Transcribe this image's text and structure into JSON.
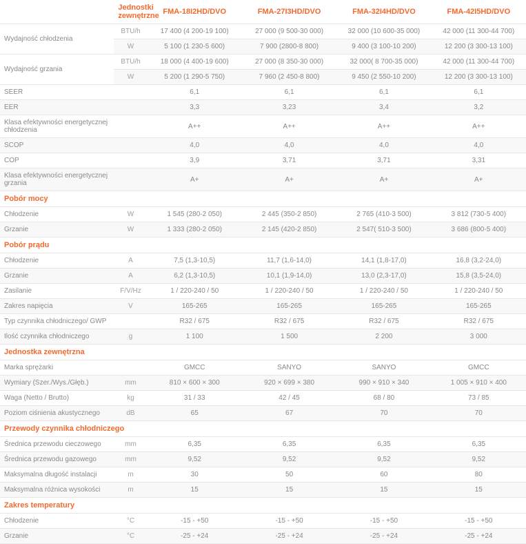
{
  "header": {
    "rowLabel": "Jednostki zewnętrzne",
    "models": [
      "FMA-18I2HD/DVO",
      "FMA-27I3HD/DVO",
      "FMA-32I4HD/DVO",
      "FMA-42I5HD/DVO"
    ]
  },
  "rows": [
    {
      "label": "Wydajność chłodzenia",
      "unit": "BTU/h",
      "v": [
        "17 400 (4 200-19 100)",
        "27 000 (9 500-30 000)",
        "32 000 (10 600-35 000)",
        "42 000 (11 300-44 700)"
      ],
      "rowspan": 2
    },
    {
      "label": "",
      "unit": "W",
      "v": [
        "5 100 (1 230-5 600)",
        "7 900 (2800-8 800)",
        "9 400 (3 100-10 200)",
        "12 200 (3 300-13 100)"
      ]
    },
    {
      "label": "Wydajność grzania",
      "unit": "BTU/h",
      "v": [
        "18 000 (4 400-19 600)",
        "27 000 (8 350-30 000)",
        "32 000( 8 700-35 000)",
        "42 000 (11 300-44 700)"
      ],
      "rowspan": 2
    },
    {
      "label": "",
      "unit": "W",
      "v": [
        "5 200 (1 290-5 750)",
        "7 960 (2 450-8 800)",
        "9 450 (2 550-10 200)",
        "12 200 (3 300-13 100)"
      ]
    },
    {
      "label": "SEER",
      "unit": "",
      "v": [
        "6,1",
        "6,1",
        "6,1",
        "6,1"
      ]
    },
    {
      "label": "EER",
      "unit": "",
      "v": [
        "3,3",
        "3,23",
        "3,4",
        "3,2"
      ]
    },
    {
      "label": "Klasa efektywności energetycznej chłodzenia",
      "unit": "",
      "v": [
        "A++",
        "A++",
        "A++",
        "A++"
      ]
    },
    {
      "label": "SCOP",
      "unit": "",
      "v": [
        "4,0",
        "4,0",
        "4,0",
        "4,0"
      ]
    },
    {
      "label": "COP",
      "unit": "",
      "v": [
        "3,9",
        "3,71",
        "3,71",
        "3,31"
      ]
    },
    {
      "label": "Klasa efektywności energetycznej grzania",
      "unit": "",
      "v": [
        "A+",
        "A+",
        "A+",
        "A+"
      ]
    },
    {
      "section": "Pobór mocy"
    },
    {
      "label": "Chłodzenie",
      "unit": "W",
      "v": [
        "1 545 (280-2 050)",
        "2 445 (350-2 850)",
        "2 765 (410-3 500)",
        "3 812 (730-5 400)"
      ]
    },
    {
      "label": "Grzanie",
      "unit": "W",
      "v": [
        "1 333 (280-2 050)",
        "2 145 (420-2 850)",
        "2 547( 510-3 500)",
        "3 686 (800-5 400)"
      ]
    },
    {
      "section": "Pobór prądu"
    },
    {
      "label": "Chłodzenie",
      "unit": "A",
      "v": [
        "7,5 (1,3-10,5)",
        "11,7 (1,6-14,0)",
        "14,1 (1,8-17,0)",
        "16,8 (3,2-24,0)"
      ]
    },
    {
      "label": "Grzanie",
      "unit": "A",
      "v": [
        "6,2 (1,3-10,5)",
        "10,1 (1,9-14,0)",
        "13,0 (2,3-17,0)",
        "15,8 (3,5-24,0)"
      ]
    },
    {
      "label": "Zasilanie",
      "unit": "F/V/Hz",
      "v": [
        "1 / 220-240 / 50",
        "1 / 220-240 / 50",
        "1 / 220-240 / 50",
        "1 / 220-240 / 50"
      ]
    },
    {
      "label": "Zakres napięcia",
      "unit": "V",
      "v": [
        "165-265",
        "165-265",
        "165-265",
        "165-265"
      ]
    },
    {
      "label": "Typ czynnika chłodniczego/ GWP",
      "unit": "",
      "v": [
        "R32 / 675",
        "R32 / 675",
        "R32 / 675",
        "R32 / 675"
      ]
    },
    {
      "label": "Ilość czynnika chłodniczego",
      "unit": "g",
      "v": [
        "1 100",
        "1 500",
        "2 200",
        "3 000"
      ]
    },
    {
      "section": "Jednostka zewnętrzna"
    },
    {
      "label": "Marka sprężarki",
      "unit": "",
      "v": [
        "GMCC",
        "SANYO",
        "SANYO",
        "GMCC"
      ]
    },
    {
      "label": "Wymiary (Szer./Wys./Głęb.)",
      "unit": "mm",
      "v": [
        "810 × 600 × 300",
        "920 × 699 × 380",
        "990 × 910 × 340",
        "1 005 × 910 × 400"
      ]
    },
    {
      "label": "Waga (Netto / Brutto)",
      "unit": "kg",
      "v": [
        "31 / 33",
        "42 / 45",
        "68 / 80",
        "73 / 85"
      ]
    },
    {
      "label": "Poziom ciśnienia akustycznego",
      "unit": "dB",
      "v": [
        "65",
        "67",
        "70",
        "70"
      ]
    },
    {
      "section": "Przewody czynnika chłodniczego"
    },
    {
      "label": "Średnica przewodu cieczowego",
      "unit": "mm",
      "v": [
        "6,35",
        "6,35",
        "6,35",
        "6,35"
      ]
    },
    {
      "label": "Średnica przewodu gazowego",
      "unit": "mm",
      "v": [
        "9,52",
        "9,52",
        "9,52",
        "9,52"
      ]
    },
    {
      "label": "Maksymalna długość instalacji",
      "unit": "m",
      "v": [
        "30",
        "50",
        "60",
        "80"
      ]
    },
    {
      "label": "Maksymalna różnica wysokości",
      "unit": "m",
      "v": [
        "15",
        "15",
        "15",
        "15"
      ]
    },
    {
      "section": "Zakres temperatury"
    },
    {
      "label": "Chłodzenie",
      "unit": "°C",
      "v": [
        "-15 - +50",
        "-15 - +50",
        "-15 - +50",
        "-15 - +50"
      ]
    },
    {
      "label": "Grzanie",
      "unit": "°C",
      "v": [
        "-25 - +24",
        "-25 - +24",
        "-25 - +24",
        "-25 - +24"
      ]
    }
  ]
}
